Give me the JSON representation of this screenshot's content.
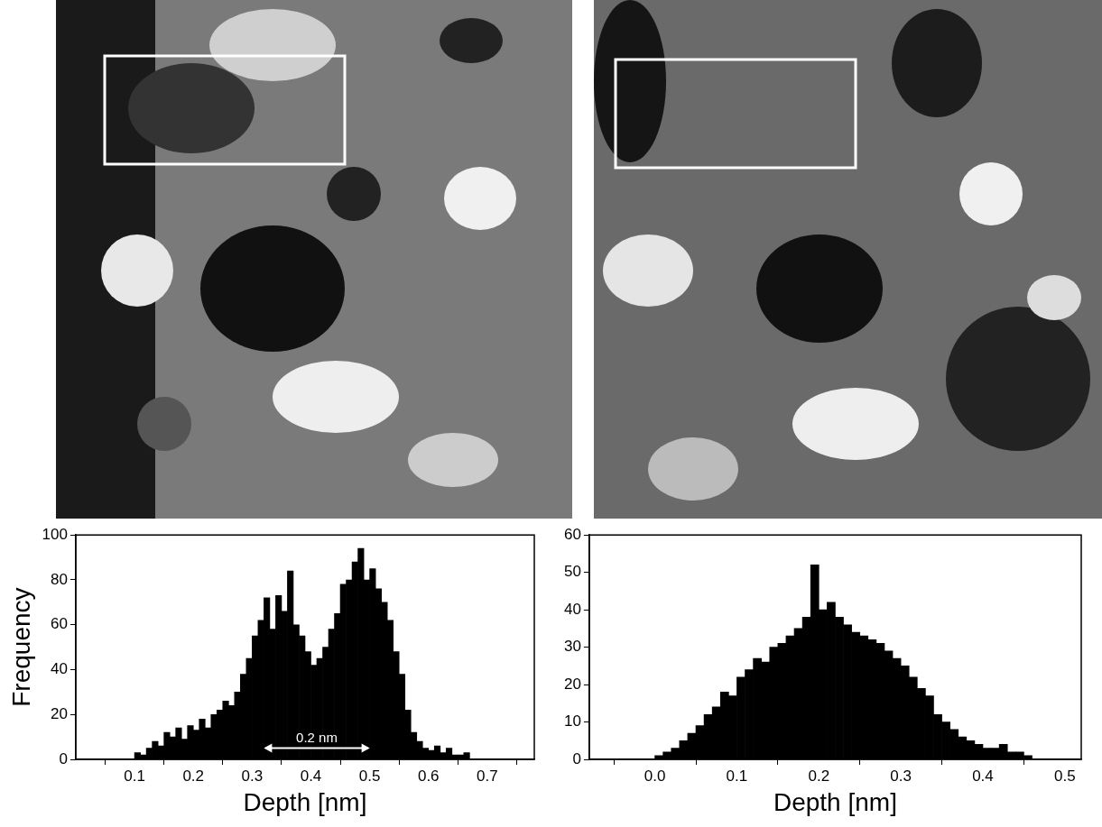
{
  "chart_data": [
    {
      "type": "histogram",
      "xlabel": "Depth [nm]",
      "ylabel": "Frequency",
      "bins": [
        0.09,
        0.1,
        0.11,
        0.12,
        0.13,
        0.14,
        0.15,
        0.16,
        0.17,
        0.18,
        0.19,
        0.2,
        0.21,
        0.22,
        0.23,
        0.24,
        0.25,
        0.26,
        0.27,
        0.28,
        0.29,
        0.3,
        0.31,
        0.32,
        0.33,
        0.34,
        0.35,
        0.36,
        0.37,
        0.38,
        0.39,
        0.4,
        0.41,
        0.42,
        0.43,
        0.44,
        0.45,
        0.46,
        0.47,
        0.48,
        0.49,
        0.5,
        0.51,
        0.52,
        0.53,
        0.54,
        0.55,
        0.56,
        0.57,
        0.58,
        0.59,
        0.6,
        0.61,
        0.62,
        0.63,
        0.64,
        0.65,
        0.66,
        0.67
      ],
      "values": [
        0,
        3,
        2,
        5,
        8,
        6,
        12,
        10,
        14,
        9,
        15,
        13,
        18,
        14,
        20,
        22,
        26,
        24,
        30,
        38,
        45,
        55,
        62,
        72,
        58,
        73,
        66,
        84,
        60,
        55,
        48,
        42,
        45,
        50,
        58,
        65,
        78,
        80,
        88,
        94,
        80,
        85,
        76,
        70,
        62,
        48,
        38,
        22,
        12,
        8,
        5,
        4,
        6,
        3,
        5,
        2,
        2,
        3
      ],
      "color": "#000000",
      "xlim": [
        0,
        0.78
      ],
      "xticks": [
        0.1,
        0.2,
        0.3,
        0.4,
        0.5,
        0.6,
        0.7
      ],
      "ylim": [
        0,
        100
      ],
      "yticks": [
        0,
        20,
        40,
        60,
        80,
        100
      ],
      "grid": false,
      "annotations": [
        {
          "text": "0.2 nm",
          "x_start": 0.32,
          "x_end": 0.5,
          "y": 5
        }
      ]
    },
    {
      "type": "histogram",
      "xlabel": "Depth [nm]",
      "bins": [
        0.0,
        0.01,
        0.02,
        0.03,
        0.04,
        0.05,
        0.06,
        0.07,
        0.08,
        0.09,
        0.1,
        0.11,
        0.12,
        0.13,
        0.14,
        0.15,
        0.16,
        0.17,
        0.18,
        0.19,
        0.2,
        0.21,
        0.22,
        0.23,
        0.24,
        0.25,
        0.26,
        0.27,
        0.28,
        0.29,
        0.3,
        0.31,
        0.32,
        0.33,
        0.34,
        0.35,
        0.36,
        0.37,
        0.38,
        0.39,
        0.4,
        0.41,
        0.42,
        0.43,
        0.44,
        0.45,
        0.46
      ],
      "values": [
        1,
        2,
        3,
        5,
        7,
        9,
        12,
        14,
        18,
        17,
        22,
        24,
        27,
        26,
        30,
        31,
        33,
        35,
        38,
        52,
        40,
        42,
        38,
        36,
        34,
        33,
        32,
        31,
        29,
        27,
        25,
        22,
        19,
        17,
        12,
        10,
        8,
        6,
        5,
        4,
        3,
        3,
        4,
        2,
        2,
        1
      ],
      "color": "#000000",
      "xlim": [
        -0.08,
        0.52
      ],
      "xticks": [
        {
          "value": 0,
          "label": "0.0"
        },
        0.1,
        0.2,
        0.3,
        0.4,
        0.5
      ],
      "ylim": [
        0,
        60
      ],
      "yticks": [
        0,
        10,
        20,
        30,
        40,
        50,
        60
      ],
      "grid": false
    }
  ]
}
